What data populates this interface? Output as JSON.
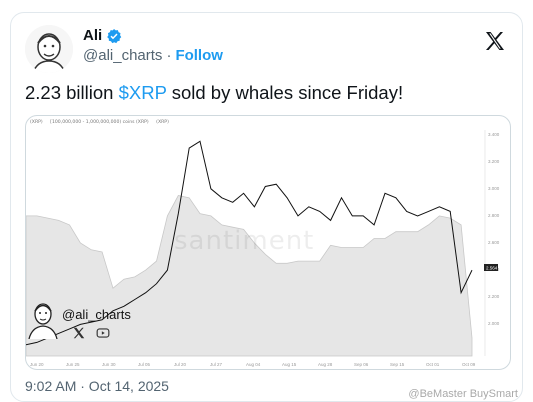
{
  "author": {
    "name": "Ali",
    "handle": "@ali_charts",
    "separator": "·",
    "follow_label": "Follow"
  },
  "tweet": {
    "text_before": "2.23 billion ",
    "cashtag": "$XRP",
    "text_after": " sold by whales since Friday!"
  },
  "chart": {
    "legend": [
      "(XRP)",
      "[100,000,000 - 1,000,000,000) coins (XRP)",
      "(XRP)"
    ],
    "watermark": "santiment",
    "brand_handle": "@ali_charts",
    "x_ticks": [
      "Jun 20",
      "Jun 25",
      "Jun 30",
      "Jul 05",
      "Jul 20",
      "Jul 27",
      "Aug 04",
      "Aug 15",
      "Aug 28",
      "Sep 06",
      "Sep 15",
      "Oct 01",
      "Oct 09"
    ],
    "y_ticks": [
      "3.400",
      "3.200",
      "3.000",
      "2.800",
      "2.600",
      "2.400",
      "2.200",
      "2.000"
    ],
    "current_value": "2.564",
    "colors": {
      "area_fill": "#e6e6e6",
      "area_stroke": "#c8c8c8",
      "price_line": "#111111",
      "axis_text": "#999999"
    },
    "chart_data": {
      "type": "line",
      "series": [
        {
          "type": "area",
          "values": [
            0.62,
            0.62,
            0.61,
            0.6,
            0.58,
            0.5,
            0.47,
            0.46,
            0.3,
            0.34,
            0.35,
            0.38,
            0.42,
            0.62,
            0.71,
            0.7,
            0.63,
            0.62,
            0.58,
            0.57,
            0.56,
            0.5,
            0.45,
            0.41,
            0.41,
            0.42,
            0.42,
            0.42,
            0.49,
            0.48,
            0.48,
            0.48,
            0.52,
            0.52,
            0.55,
            0.55,
            0.55,
            0.58,
            0.62,
            0.61,
            0.58,
            0.08
          ]
        },
        {
          "type": "line",
          "values": [
            0.05,
            0.06,
            0.08,
            0.1,
            0.12,
            0.14,
            0.15,
            0.16,
            0.2,
            0.22,
            0.25,
            0.28,
            0.32,
            0.38,
            0.63,
            0.92,
            0.95,
            0.74,
            0.7,
            0.68,
            0.72,
            0.66,
            0.75,
            0.76,
            0.7,
            0.62,
            0.66,
            0.64,
            0.6,
            0.7,
            0.62,
            0.62,
            0.58,
            0.72,
            0.7,
            0.64,
            0.62,
            0.64,
            0.66,
            0.64,
            0.28,
            0.38
          ]
        }
      ]
    }
  },
  "footer": {
    "timestamp": "9:02 AM · Oct 14, 2025"
  },
  "watermark_bottom": "@BeMaster BuySmart"
}
